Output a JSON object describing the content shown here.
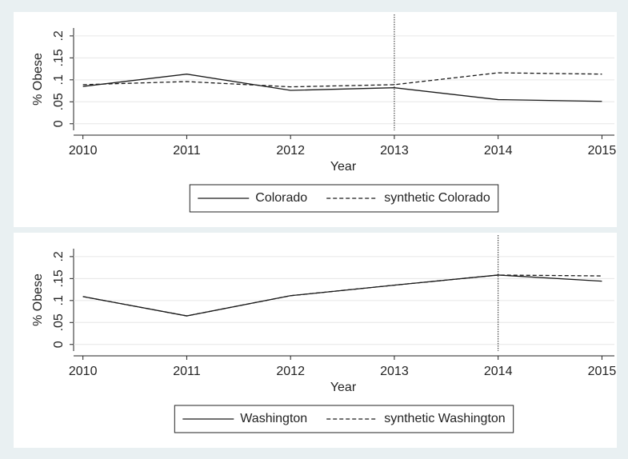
{
  "chart_data": [
    {
      "type": "line",
      "x": [
        2010,
        2011,
        2012,
        2013,
        2014,
        2015
      ],
      "series": [
        {
          "name": "Colorado",
          "color": "#1a1a1a",
          "dash": false,
          "values": [
            0.085,
            0.113,
            0.076,
            0.082,
            0.055,
            0.051
          ]
        },
        {
          "name": "synthetic Colorado",
          "color": "#1a1a1a",
          "dash": true,
          "values": [
            0.089,
            0.096,
            0.084,
            0.089,
            0.116,
            0.113
          ]
        }
      ],
      "xline": 2013,
      "xlabel": "Year",
      "ylabel": "% Obese",
      "xlim": [
        2009.91,
        2015.12
      ],
      "xticks": [
        2010,
        2011,
        2012,
        2013,
        2014,
        2015
      ],
      "ylim": [
        -0.015,
        0.218
      ],
      "yticks": [
        0,
        {
          "value": 0.05,
          "label": ".05"
        },
        {
          "value": 0.1,
          "label": ".1"
        },
        {
          "value": 0.15,
          "label": ".15"
        },
        {
          "value": 0.2,
          "label": ".2"
        }
      ],
      "grid": true,
      "legend": "bottom"
    },
    {
      "type": "line",
      "x": [
        2010,
        2011,
        2012,
        2013,
        2014,
        2015
      ],
      "series": [
        {
          "name": "Washington",
          "color": "#1a1a1a",
          "dash": false,
          "values": [
            0.109,
            0.065,
            0.111,
            0.135,
            0.158,
            0.144
          ]
        },
        {
          "name": "synthetic Washington",
          "color": "#1a1a1a",
          "dash": true,
          "values": [
            0.109,
            0.065,
            0.111,
            0.135,
            0.158,
            0.156
          ]
        }
      ],
      "xline": 2014,
      "xlabel": "Year",
      "ylabel": "% Obese",
      "xlim": [
        2009.91,
        2015.12
      ],
      "xticks": [
        2010,
        2011,
        2012,
        2013,
        2014,
        2015
      ],
      "ylim": [
        -0.015,
        0.218
      ],
      "yticks": [
        0,
        {
          "value": 0.05,
          "label": ".05"
        },
        {
          "value": 0.1,
          "label": ".1"
        },
        {
          "value": 0.15,
          "label": ".15"
        },
        {
          "value": 0.2,
          "label": ".2"
        }
      ],
      "grid": true,
      "legend": "bottom"
    }
  ]
}
